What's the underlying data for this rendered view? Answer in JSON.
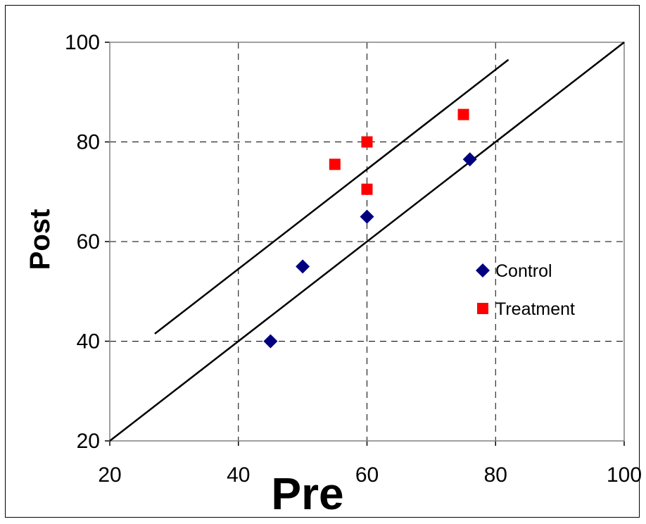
{
  "chart_data": {
    "type": "scatter",
    "xlabel": "Pre",
    "ylabel": "Post",
    "xlim": [
      20,
      100
    ],
    "ylim": [
      20,
      100
    ],
    "xticks": [
      "20",
      "40",
      "60",
      "80",
      "100"
    ],
    "yticks": [
      "20",
      "40",
      "60",
      "80",
      "100"
    ],
    "grid": "dashed",
    "legend_position": "right",
    "series": [
      {
        "name": "Control",
        "marker": "diamond",
        "color": "#00007f",
        "points": [
          [
            45,
            40
          ],
          [
            50,
            55
          ],
          [
            60,
            65
          ],
          [
            76,
            76.5
          ]
        ]
      },
      {
        "name": "Treatment",
        "marker": "square",
        "color": "#ff0000",
        "points": [
          [
            55,
            75.5
          ],
          [
            60,
            80
          ],
          [
            60,
            70.5
          ],
          [
            75,
            85.5
          ]
        ]
      }
    ],
    "reference_lines": [
      {
        "from": [
          20,
          20
        ],
        "to": [
          100,
          100
        ]
      },
      {
        "from": [
          27,
          41.5
        ],
        "to": [
          82,
          96.5
        ]
      }
    ]
  }
}
